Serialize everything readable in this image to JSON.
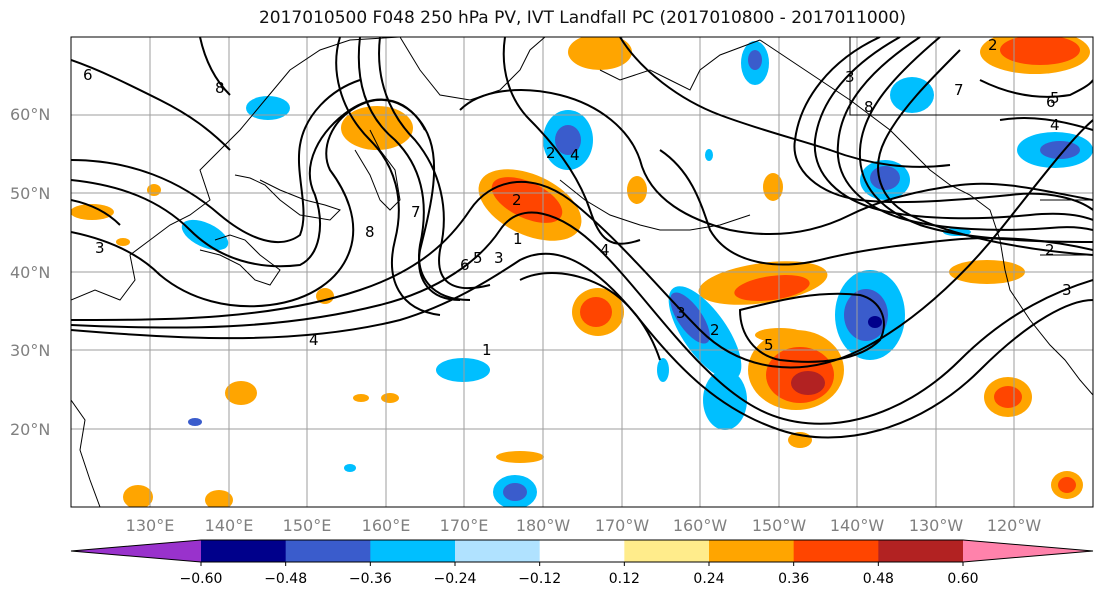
{
  "title": "2017010500 F048 250 hPa PV, IVT Landfall PC (2017010800 - 2017011000)",
  "lat_labels": [
    "60°N",
    "50°N",
    "40°N",
    "30°N",
    "20°N"
  ],
  "lon_labels": [
    "130°E",
    "140°E",
    "150°E",
    "160°E",
    "170°E",
    "180°W",
    "170°W",
    "160°W",
    "150°W",
    "140°W",
    "130°W",
    "120°W"
  ],
  "colorbar": {
    "colors": [
      "#9932cc",
      "#00008b",
      "#3a5ccc",
      "#00bfff",
      "#b0e2ff",
      "#ffffff",
      "#ffec8b",
      "#ffa500",
      "#ff4500",
      "#b22222",
      "#ff82ab"
    ],
    "tick_labels": [
      "−0.60",
      "−0.48",
      "−0.36",
      "−0.24",
      "−0.12",
      "0.12",
      "0.24",
      "0.36",
      "0.48",
      "0.60"
    ]
  },
  "contour_labels": [
    "6",
    "8",
    "3",
    "4",
    "1",
    "8",
    "7",
    "6",
    "5",
    "3",
    "2",
    "1",
    "2",
    "4",
    "3",
    "5",
    "2",
    "3",
    "4",
    "2",
    "3",
    "7",
    "6",
    "8",
    "4",
    "5",
    "2"
  ]
}
